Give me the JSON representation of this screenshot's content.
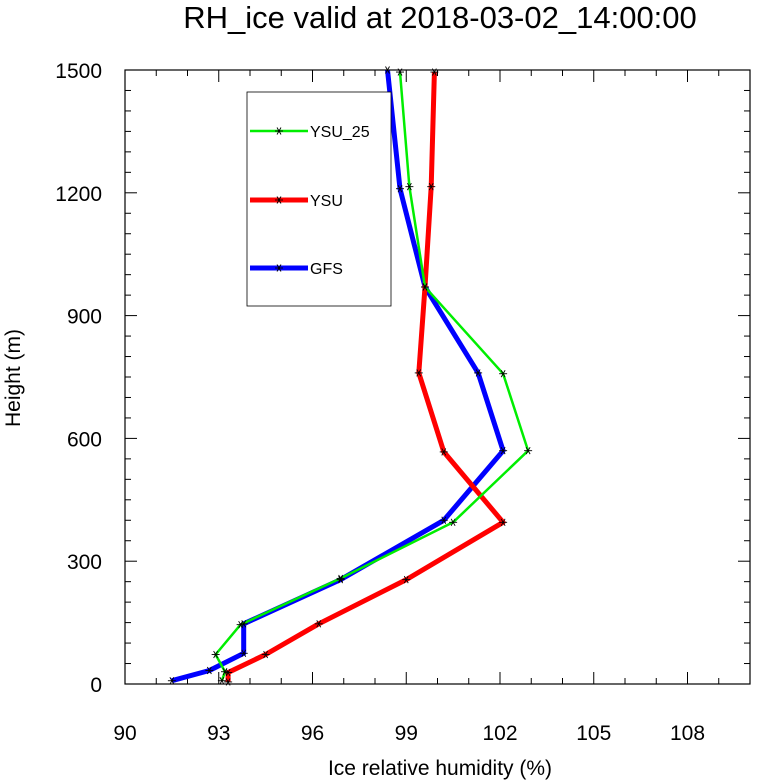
{
  "chart_data": {
    "type": "line",
    "title": "RH_ice valid at 2018-03-02_14:00:00",
    "xlabel": "Ice relative humidity (%)",
    "ylabel": "Height (m)",
    "xlim": [
      90,
      110
    ],
    "ylim": [
      0,
      1500
    ],
    "xticks": [
      90,
      93,
      96,
      99,
      102,
      105,
      108
    ],
    "yticks": [
      0,
      300,
      600,
      900,
      1200,
      1500
    ],
    "grid": false,
    "legend_position": "top-left",
    "series": [
      {
        "name": "YSU_25",
        "color": "#00ee00",
        "marker": "asterisk",
        "points": [
          {
            "x": 93.1,
            "y": 8
          },
          {
            "x": 93.2,
            "y": 30
          },
          {
            "x": 92.9,
            "y": 72
          },
          {
            "x": 93.7,
            "y": 145
          },
          {
            "x": 96.9,
            "y": 258
          },
          {
            "x": 100.5,
            "y": 395
          },
          {
            "x": 102.9,
            "y": 570
          },
          {
            "x": 102.1,
            "y": 758
          },
          {
            "x": 99.6,
            "y": 970
          },
          {
            "x": 99.1,
            "y": 1215
          },
          {
            "x": 98.8,
            "y": 1495
          }
        ]
      },
      {
        "name": "YSU",
        "color": "#ff0000",
        "marker": "asterisk",
        "points": [
          {
            "x": 93.3,
            "y": 5
          },
          {
            "x": 93.3,
            "y": 28
          },
          {
            "x": 94.5,
            "y": 72
          },
          {
            "x": 96.2,
            "y": 147
          },
          {
            "x": 99.0,
            "y": 255
          },
          {
            "x": 102.1,
            "y": 395
          },
          {
            "x": 100.2,
            "y": 567
          },
          {
            "x": 99.4,
            "y": 760
          },
          {
            "x": 99.6,
            "y": 970
          },
          {
            "x": 99.8,
            "y": 1215
          },
          {
            "x": 99.9,
            "y": 1495
          }
        ]
      },
      {
        "name": "GFS",
        "color": "#0000ff",
        "marker": "asterisk",
        "points": [
          {
            "x": 91.5,
            "y": 8
          },
          {
            "x": 92.7,
            "y": 33
          },
          {
            "x": 93.8,
            "y": 75
          },
          {
            "x": 93.8,
            "y": 147
          },
          {
            "x": 96.9,
            "y": 255
          },
          {
            "x": 100.2,
            "y": 400
          },
          {
            "x": 102.1,
            "y": 570
          },
          {
            "x": 101.3,
            "y": 760
          },
          {
            "x": 99.6,
            "y": 970
          },
          {
            "x": 98.8,
            "y": 1210
          },
          {
            "x": 98.4,
            "y": 1500
          }
        ]
      }
    ]
  }
}
